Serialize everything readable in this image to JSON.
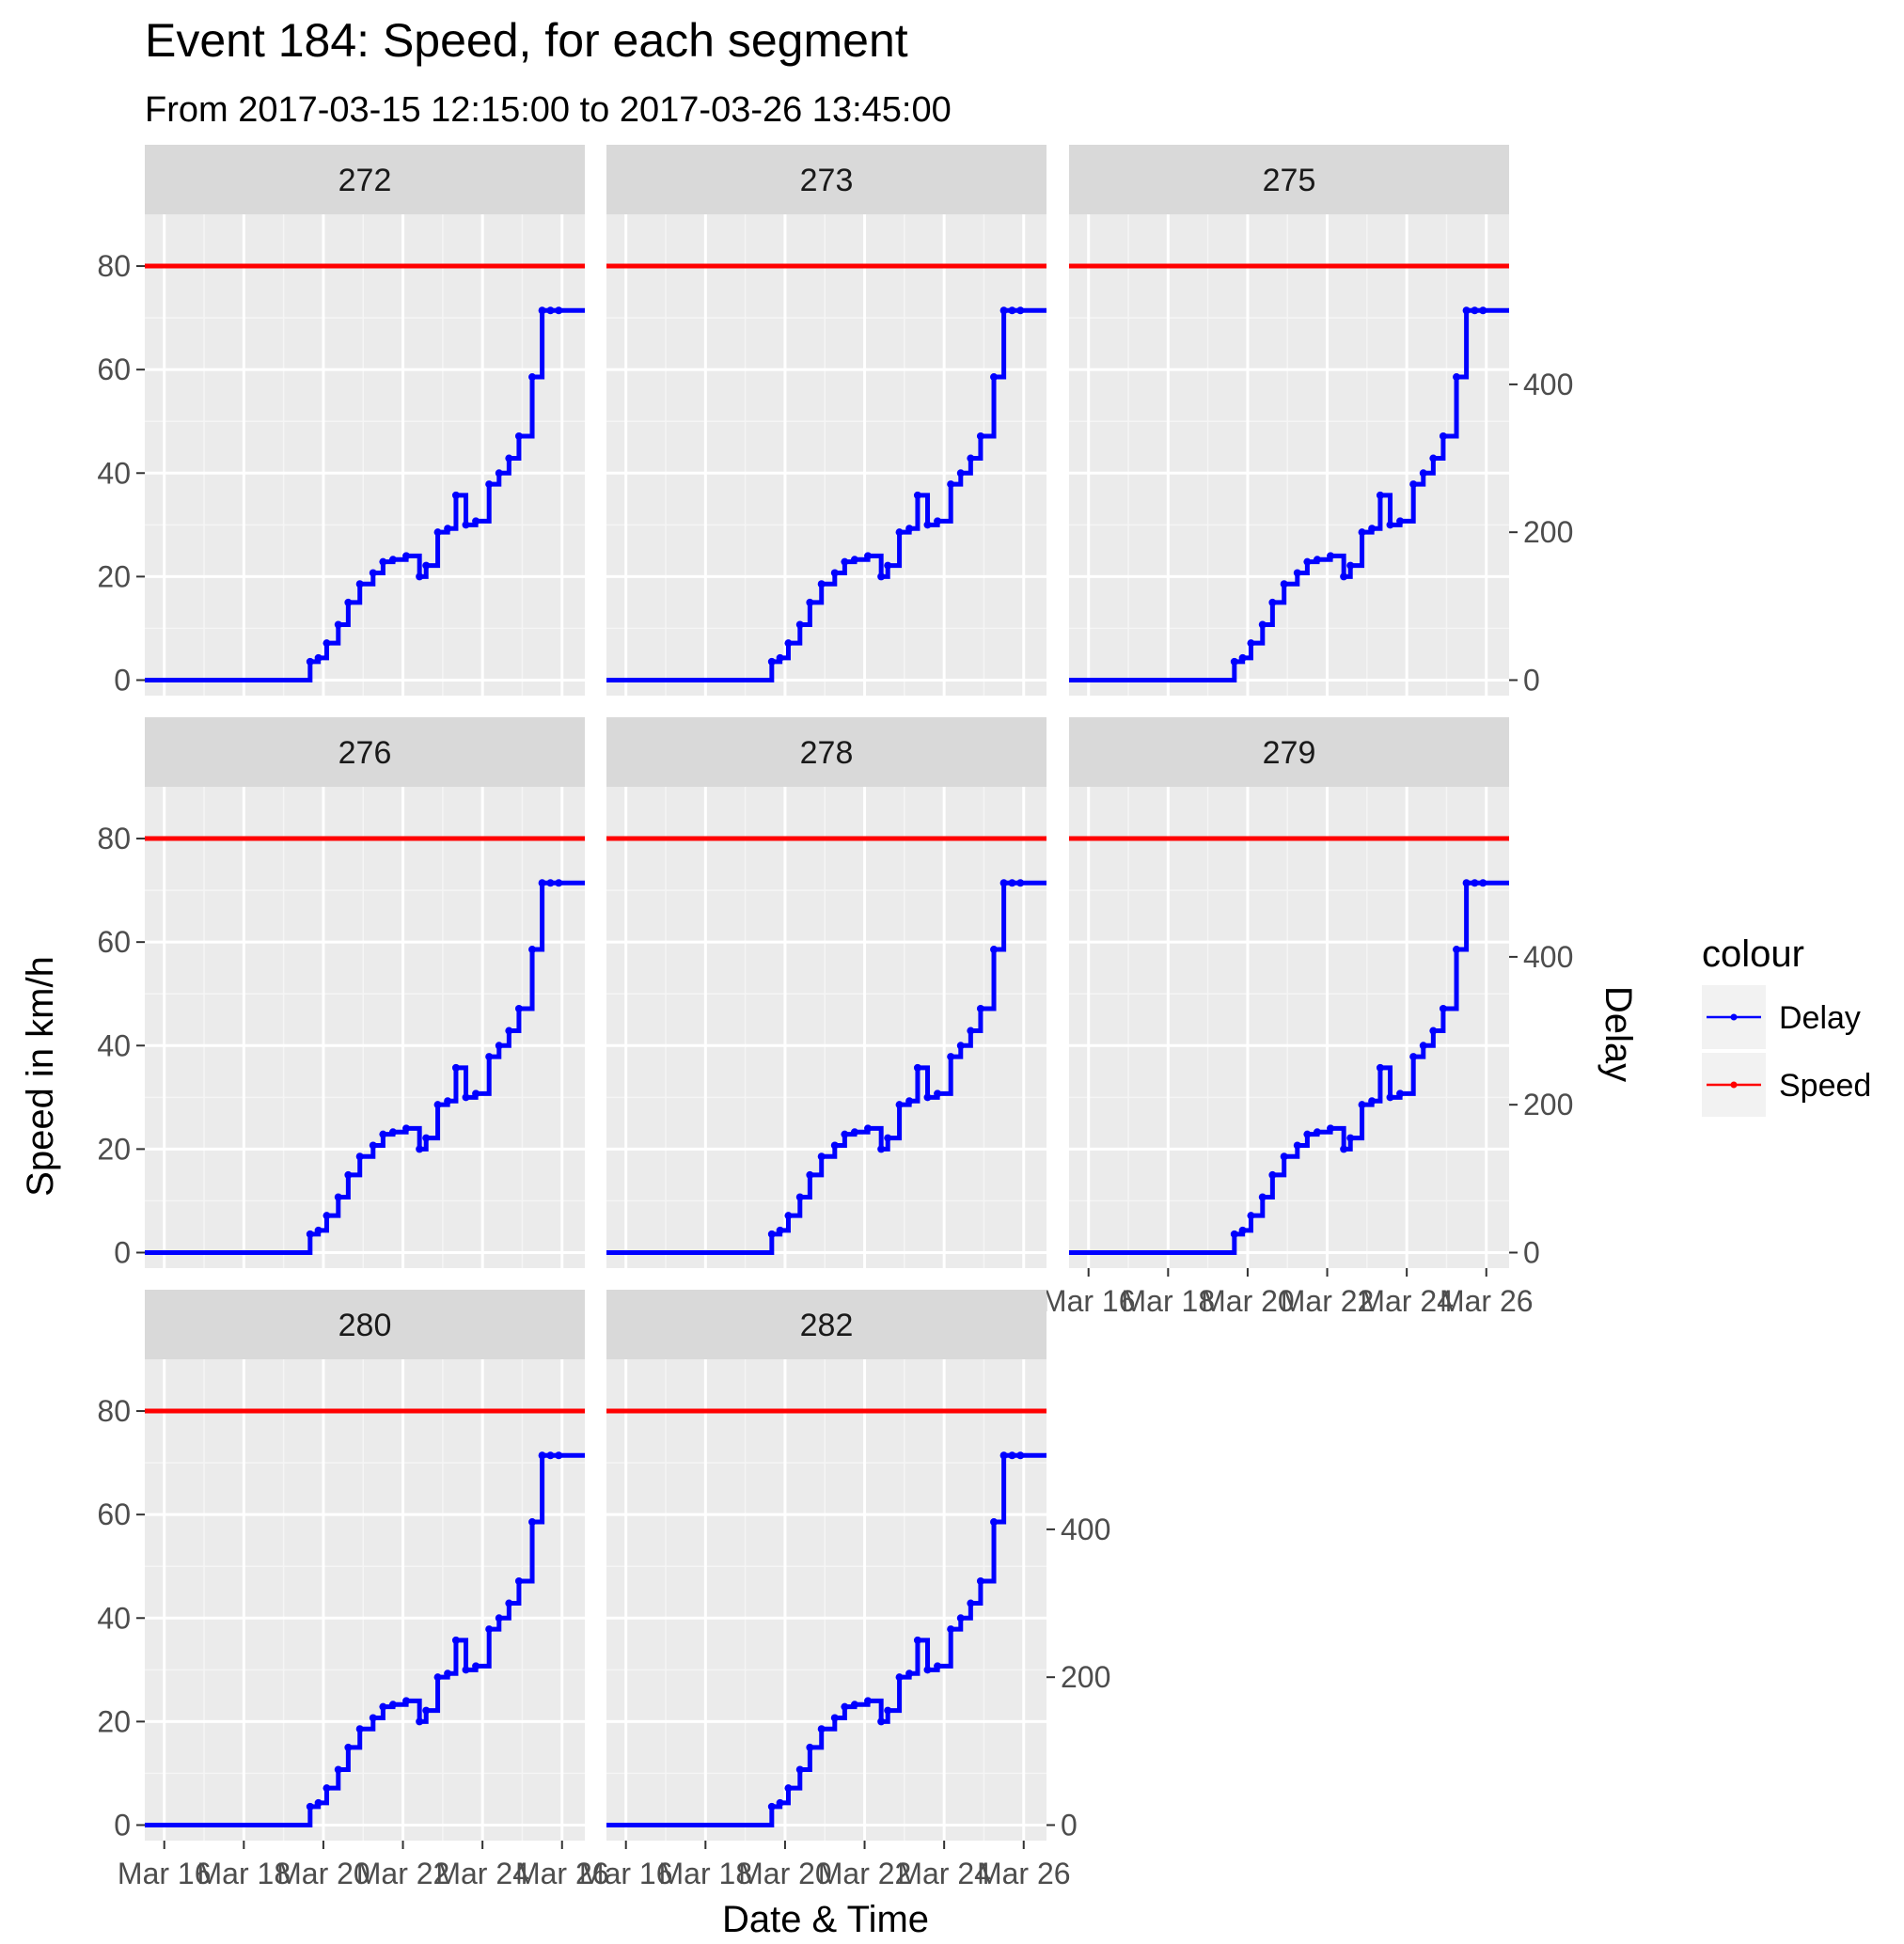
{
  "chart_data": {
    "type": "line",
    "title": "Event 184: Speed, for each segment",
    "subtitle": "From 2017-03-15 12:15:00 to 2017-03-26 13:45:00",
    "xlabel": "Date & Time",
    "ylabel": "Speed in km/h",
    "y2label": "Delay",
    "xlim": [
      "2017-03-15 12:15:00",
      "2017-03-26 13:45:00"
    ],
    "ylim": [
      -3,
      90
    ],
    "y2lim": [
      -21,
      630
    ],
    "x_ticks": [
      "Mar 16",
      "Mar 18",
      "Mar 20",
      "Mar 22",
      "Mar 24",
      "Mar 26"
    ],
    "x_tick_dates": [
      "2017-03-16",
      "2017-03-18",
      "2017-03-20",
      "2017-03-22",
      "2017-03-24",
      "2017-03-26"
    ],
    "y_ticks": [
      0,
      20,
      40,
      60,
      80
    ],
    "y2_ticks": [
      0,
      200,
      400
    ],
    "grid": true,
    "legend": {
      "title": "colour",
      "position": "right",
      "entries": [
        {
          "label": "Delay",
          "color": "#0000ff"
        },
        {
          "label": "Speed",
          "color": "#ff0000"
        }
      ]
    },
    "panels": [
      "272",
      "273",
      "275",
      "276",
      "278",
      "279",
      "280",
      "282"
    ],
    "series": [
      {
        "name": "Speed",
        "axis": "left",
        "color": "#ff0000",
        "x": [
          "2017-03-15 12:15:00",
          "2017-03-26 13:45:00"
        ],
        "values": [
          80,
          80
        ]
      },
      {
        "name": "Delay",
        "axis": "right",
        "color": "#0000ff",
        "step": true,
        "x": [
          "2017-03-15 12:15:00",
          "2017-03-19 16:00:00",
          "2017-03-19 21:00:00",
          "2017-03-20 02:00:00",
          "2017-03-20 09:00:00",
          "2017-03-20 15:00:00",
          "2017-03-20 22:00:00",
          "2017-03-21 06:00:00",
          "2017-03-21 12:00:00",
          "2017-03-21 18:00:00",
          "2017-03-22 02:00:00",
          "2017-03-22 10:00:00",
          "2017-03-22 14:00:00",
          "2017-03-22 21:00:00",
          "2017-03-23 03:00:00",
          "2017-03-23 08:00:00",
          "2017-03-23 14:00:00",
          "2017-03-23 20:00:00",
          "2017-03-24 04:00:00",
          "2017-03-24 10:00:00",
          "2017-03-24 16:00:00",
          "2017-03-24 22:00:00",
          "2017-03-25 06:00:00",
          "2017-03-25 12:00:00",
          "2017-03-25 17:00:00",
          "2017-03-25 22:00:00",
          "2017-03-26 13:45:00"
        ],
        "values": [
          0,
          25,
          30,
          50,
          75,
          105,
          130,
          145,
          160,
          163,
          168,
          140,
          155,
          200,
          205,
          250,
          210,
          215,
          265,
          280,
          300,
          330,
          410,
          500,
          500,
          500,
          500
        ]
      }
    ]
  }
}
